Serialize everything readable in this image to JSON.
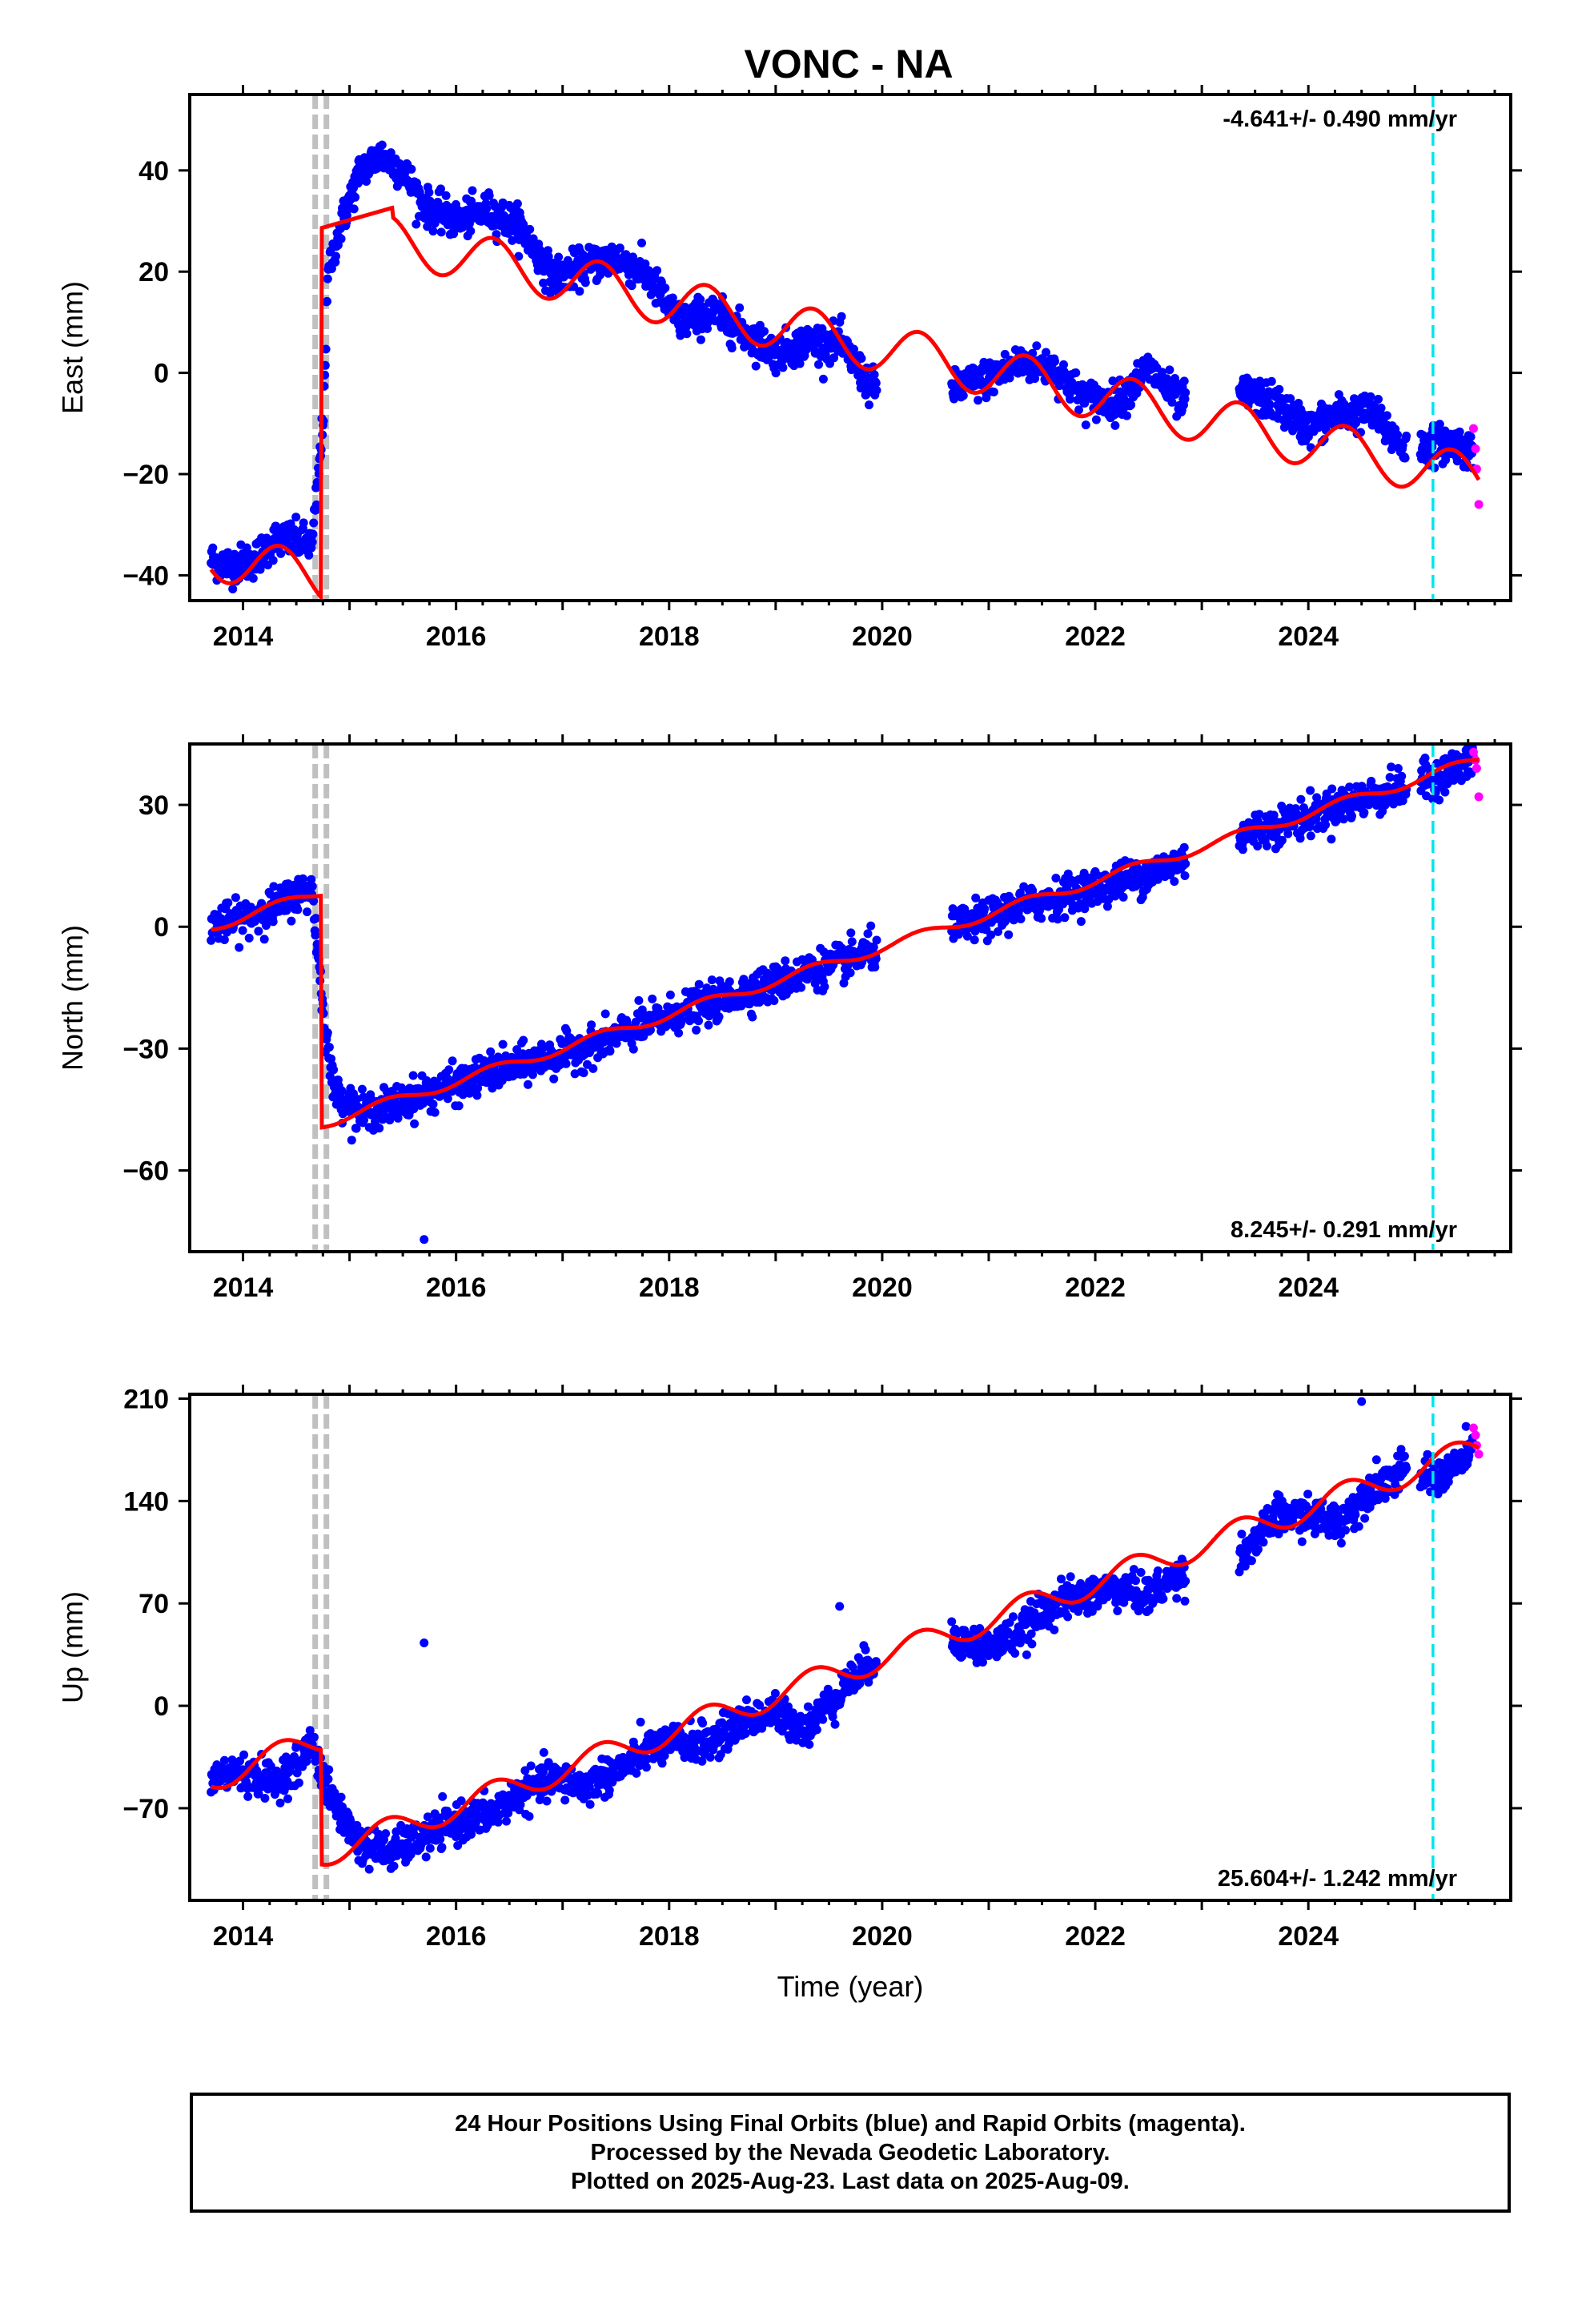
{
  "title": "VONC - NA",
  "colors": {
    "final_orbits": "#0000ff",
    "rapid_orbits": "#ff00ff",
    "model": "#ff0000",
    "equipment_change": "#c0c0c0",
    "marker": "#00e5ee"
  },
  "footer": {
    "line1": "24 Hour Positions Using Final Orbits (blue) and Rapid Orbits (magenta).",
    "line2": "Processed by the Nevada Geodetic Laboratory.",
    "line3": "Plotted on 2025-Aug-23. Last data on 2025-Aug-09."
  },
  "chart_data": [
    {
      "type": "scatter",
      "component": "east",
      "ylabel": "East (mm)",
      "rate_label": "-4.641+/- 0.490 mm/yr",
      "xlim": [
        2013.5,
        2025.9
      ],
      "ylim": [
        -45,
        55
      ],
      "yticks": [
        -40,
        -20,
        0,
        20,
        40
      ],
      "xticks": [
        2014,
        2016,
        2018,
        2020,
        2022,
        2024
      ],
      "grey_line_x": 2014.73,
      "cyan_line_x": 2025.17,
      "series": [
        {
          "name": "Final Orbits (blue)",
          "x": [
            2013.7,
            2013.9,
            2014.1,
            2014.3,
            2014.5,
            2014.65,
            2014.75,
            2014.8,
            2014.9,
            2015.1,
            2015.3,
            2015.5,
            2015.7,
            2016.0,
            2016.3,
            2016.6,
            2016.9,
            2017.2,
            2017.5,
            2017.8,
            2018.1,
            2018.4,
            2018.7,
            2019.0,
            2019.3,
            2019.6,
            2019.9,
            2020.7,
            2021.0,
            2021.3,
            2021.6,
            2021.9,
            2022.2,
            2022.5,
            2022.8,
            2023.4,
            2023.7,
            2024.0,
            2024.3,
            2024.6,
            2024.9,
            2025.2,
            2025.4,
            2025.55
          ],
          "y": [
            -37,
            -38,
            -37,
            -33,
            -33,
            -34,
            -10,
            20,
            28,
            40,
            43,
            40,
            33,
            30,
            32,
            29,
            19,
            21,
            23,
            19,
            10,
            12,
            8,
            4,
            6,
            6,
            -3,
            -3,
            -1,
            2,
            1,
            -5,
            -6,
            1,
            -6,
            -4,
            -6,
            -11,
            -8,
            -8,
            -15,
            -14,
            -14,
            -16
          ]
        },
        {
          "name": "Rapid Orbits (magenta)",
          "x": [
            2025.55,
            2025.57,
            2025.58,
            2025.6
          ],
          "y": [
            -11,
            -15,
            -19,
            -26
          ]
        }
      ],
      "model": {
        "trend_rate": -4.641,
        "annual_amplitude": 4.8,
        "pre_offset_intercept": -36,
        "post_offset_value": 29
      }
    },
    {
      "type": "scatter",
      "component": "north",
      "ylabel": "North (mm)",
      "rate_label": "8.245+/- 0.291 mm/yr",
      "xlim": [
        2013.5,
        2025.9
      ],
      "ylim": [
        -80,
        45
      ],
      "yticks": [
        -60,
        -30,
        0,
        30
      ],
      "xticks": [
        2014,
        2016,
        2018,
        2020,
        2022,
        2024
      ],
      "grey_line_x": 2014.73,
      "cyan_line_x": 2025.17,
      "series": [
        {
          "name": "Final Orbits (blue)",
          "x": [
            2013.7,
            2013.9,
            2014.1,
            2014.3,
            2014.5,
            2014.65,
            2014.75,
            2014.85,
            2015.1,
            2015.4,
            2015.7,
            2016.0,
            2016.3,
            2016.6,
            2016.9,
            2017.2,
            2017.5,
            2017.8,
            2018.1,
            2018.4,
            2018.7,
            2019.0,
            2019.3,
            2019.6,
            2019.9,
            2020.7,
            2021.0,
            2021.3,
            2021.6,
            2021.9,
            2022.2,
            2022.5,
            2022.8,
            2023.4,
            2023.7,
            2024.0,
            2024.3,
            2024.6,
            2024.9,
            2025.2,
            2025.4,
            2025.55
          ],
          "y": [
            1,
            1,
            3,
            5,
            8,
            9,
            -20,
            -40,
            -46,
            -44,
            -41,
            -39,
            -36,
            -34,
            -32,
            -30,
            -27,
            -24,
            -21,
            -19,
            -16,
            -14,
            -11,
            -9,
            -6,
            0,
            2,
            5,
            7,
            9,
            11,
            13,
            16,
            23,
            25,
            27,
            30,
            32,
            34,
            37,
            39,
            41
          ],
          "outliers_x": [
            2015.7
          ],
          "outliers_y": [
            -77
          ]
        },
        {
          "name": "Rapid Orbits (magenta)",
          "x": [
            2025.55,
            2025.57,
            2025.58,
            2025.6
          ],
          "y": [
            43,
            41,
            39,
            32
          ]
        }
      ],
      "model": {
        "trend_rate": 8.245,
        "annual_amplitude": 1.2,
        "pre_offset_intercept": 0,
        "post_offset_value": -48
      }
    },
    {
      "type": "scatter",
      "component": "up",
      "ylabel": "Up (mm)",
      "rate_label": "25.604+/- 1.242 mm/yr",
      "xlim": [
        2013.5,
        2025.9
      ],
      "ylim": [
        -133,
        213
      ],
      "yticks": [
        -70,
        0,
        70,
        140,
        210
      ],
      "xticks": [
        2014,
        2016,
        2018,
        2020,
        2022,
        2024
      ],
      "xlabel": "Time (year)",
      "grey_line_x": 2014.73,
      "cyan_line_x": 2025.17,
      "series": [
        {
          "name": "Final Orbits (blue)",
          "x": [
            2013.7,
            2013.9,
            2014.1,
            2014.3,
            2014.5,
            2014.65,
            2014.8,
            2015.1,
            2015.4,
            2015.7,
            2016.0,
            2016.3,
            2016.6,
            2016.9,
            2017.2,
            2017.5,
            2017.8,
            2018.1,
            2018.4,
            2018.7,
            2019.0,
            2019.3,
            2019.6,
            2019.9,
            2020.7,
            2021.0,
            2021.3,
            2021.6,
            2021.9,
            2022.2,
            2022.5,
            2022.8,
            2023.4,
            2023.7,
            2024.0,
            2024.3,
            2024.6,
            2024.9,
            2025.2,
            2025.4,
            2025.55
          ],
          "y": [
            -50,
            -45,
            -48,
            -52,
            -40,
            -25,
            -60,
            -95,
            -100,
            -90,
            -80,
            -75,
            -60,
            -50,
            -55,
            -45,
            -30,
            -25,
            -25,
            -10,
            -5,
            -15,
            10,
            30,
            45,
            40,
            50,
            70,
            75,
            80,
            75,
            90,
            105,
            130,
            130,
            125,
            150,
            160,
            155,
            165,
            175
          ],
          "outliers_x": [
            2015.7,
            2019.6,
            2024.5
          ],
          "outliers_y": [
            43,
            68,
            208
          ]
        },
        {
          "name": "Rapid Orbits (magenta)",
          "x": [
            2025.55,
            2025.57,
            2025.58,
            2025.6
          ],
          "y": [
            190,
            185,
            178,
            172
          ]
        }
      ],
      "model": {
        "trend_rate": 25.604,
        "annual_amplitude": 9,
        "pre_offset_intercept": -50,
        "post_offset_value": -100
      }
    }
  ]
}
